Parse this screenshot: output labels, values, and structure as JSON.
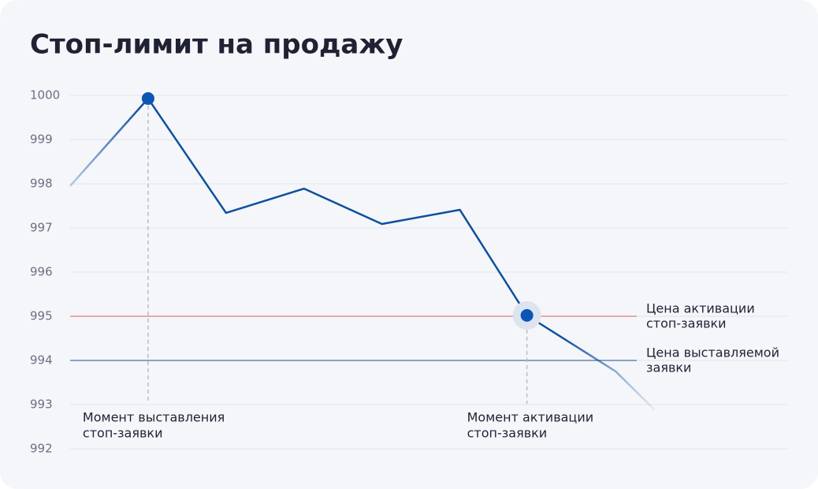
{
  "chart_data": {
    "type": "line",
    "title": "Стоп-лимит на продажу",
    "x": [
      0,
      1,
      2,
      3,
      4,
      5,
      5.86,
      7,
      7.5
    ],
    "series": [
      {
        "color": "#0f4f9e",
        "values": [
          997.95,
          999.93,
          997.34,
          997.89,
          997.09,
          997.41,
          995.02,
          993.75,
          992.88
        ]
      }
    ],
    "xlim": [
      0,
      9.2
    ],
    "ylim": [
      992,
      1000
    ],
    "yticks": [
      992,
      993,
      994,
      995,
      996,
      997,
      998,
      999,
      1000
    ],
    "grid": true,
    "reference_lines": [
      {
        "value": 995,
        "color": "#e05a5a",
        "lines": [
          "Цена активации",
          "стоп-заявки"
        ]
      },
      {
        "value": 994,
        "color": "#1b4f8a",
        "lines": [
          "Цена выставляемой",
          "заявки"
        ]
      }
    ],
    "events": [
      {
        "x": 1,
        "lines": [
          "Момент выставления",
          "стоп-заявки"
        ]
      },
      {
        "x": 5.86,
        "lines": [
          "Момент активации",
          "стоп-заявки"
        ]
      }
    ]
  }
}
